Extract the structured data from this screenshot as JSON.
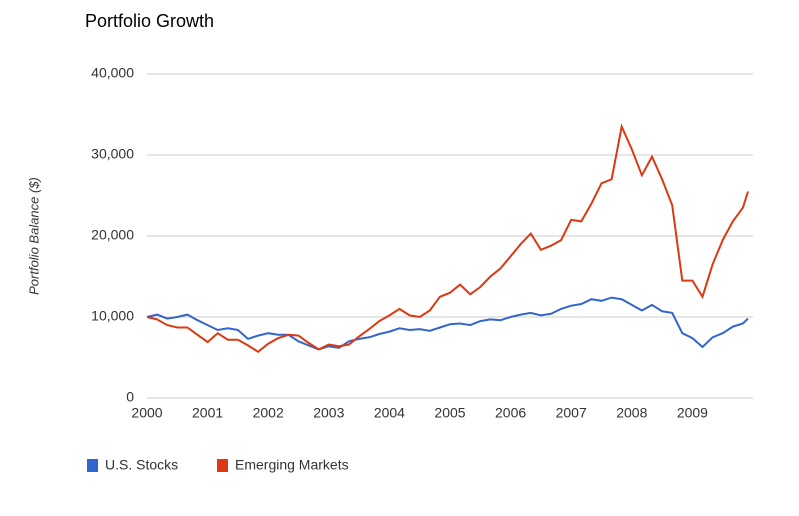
{
  "chart_data": {
    "type": "line",
    "title": "Portfolio Growth",
    "y_label": "Portfolio Balance ($)",
    "x": [
      2000,
      2000.167,
      2000.333,
      2000.5,
      2000.667,
      2000.833,
      2001,
      2001.167,
      2001.333,
      2001.5,
      2001.667,
      2001.833,
      2002,
      2002.167,
      2002.333,
      2002.5,
      2002.667,
      2002.833,
      2003,
      2003.167,
      2003.333,
      2003.5,
      2003.667,
      2003.833,
      2004,
      2004.167,
      2004.333,
      2004.5,
      2004.667,
      2004.833,
      2005,
      2005.167,
      2005.333,
      2005.5,
      2005.667,
      2005.833,
      2006,
      2006.167,
      2006.333,
      2006.5,
      2006.667,
      2006.833,
      2007,
      2007.167,
      2007.333,
      2007.5,
      2007.667,
      2007.833,
      2008,
      2008.167,
      2008.333,
      2008.5,
      2008.667,
      2008.833,
      2009,
      2009.167,
      2009.333,
      2009.5,
      2009.667,
      2009.833,
      2009.917
    ],
    "series": [
      {
        "name": "U.S. Stocks",
        "color": "#3366cc",
        "values": [
          10000,
          10300,
          9800,
          10000,
          10300,
          9600,
          9000,
          8400,
          8600,
          8400,
          7300,
          7700,
          8000,
          7800,
          7800,
          7000,
          6500,
          6000,
          6400,
          6200,
          7000,
          7300,
          7500,
          7900,
          8200,
          8600,
          8400,
          8500,
          8300,
          8700,
          9100,
          9200,
          9000,
          9500,
          9700,
          9600,
          10000,
          10300,
          10500,
          10200,
          10400,
          11000,
          11400,
          11600,
          12200,
          12000,
          12400,
          12200,
          11500,
          10800,
          11500,
          10700,
          10500,
          8000,
          7400,
          6300,
          7500,
          8000,
          8800,
          9200,
          9800
        ]
      },
      {
        "name": "Emerging Markets",
        "color": "#dc3912",
        "values": [
          10000,
          9700,
          9000,
          8700,
          8700,
          7800,
          6900,
          8000,
          7200,
          7200,
          6500,
          5700,
          6700,
          7400,
          7800,
          7700,
          6800,
          6000,
          6600,
          6400,
          6600,
          7600,
          8500,
          9500,
          10200,
          11000,
          10200,
          10000,
          10800,
          12500,
          13000,
          14000,
          12800,
          13700,
          15000,
          16000,
          17500,
          19000,
          20300,
          18300,
          18800,
          19500,
          22000,
          21800,
          24000,
          26500,
          27000,
          33500,
          30700,
          27500,
          29800,
          27000,
          23800,
          14500,
          14500,
          12500,
          16500,
          19500,
          21800,
          23500,
          25500
        ]
      }
    ],
    "xlim": [
      2000,
      2010
    ],
    "xticks": [
      2000,
      2001,
      2002,
      2003,
      2004,
      2005,
      2006,
      2007,
      2008,
      2009
    ],
    "ylim": [
      0,
      40000
    ],
    "yticks": [
      0,
      {
        "value": 10000,
        "label": "10,000"
      },
      {
        "value": 20000,
        "label": "20,000"
      },
      {
        "value": 30000,
        "label": "30,000"
      },
      {
        "value": 40000,
        "label": "40,000"
      }
    ],
    "grid": true
  }
}
